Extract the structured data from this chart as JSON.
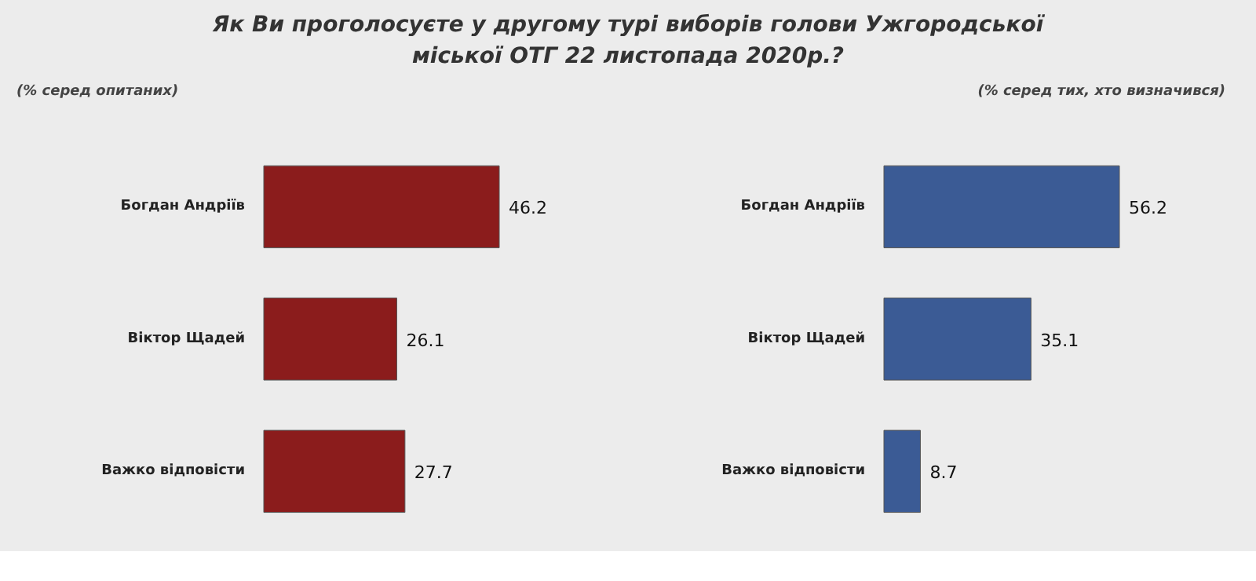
{
  "chart_data": [
    {
      "type": "bar",
      "orientation": "horizontal",
      "title": "Як Ви проголосуєте у другому турі виборів голови Ужгородської міської ОТГ 22 листопада 2020р.?",
      "subtitle": "(% серед опитаних)",
      "categories": [
        "Богдан Андріїв",
        "Віктор Щадей",
        "Важко відповісти"
      ],
      "values": [
        46.2,
        26.1,
        27.7
      ],
      "color": "#8b1c1c",
      "data_labels": true
    },
    {
      "type": "bar",
      "orientation": "horizontal",
      "subtitle": "(% серед тих, хто визначився)",
      "categories": [
        "Богдан Андріїв",
        "Віктор Щадей",
        "Важко відповісти"
      ],
      "values": [
        56.2,
        35.1,
        8.7
      ],
      "color": "#3b5b95",
      "data_labels": true
    }
  ]
}
